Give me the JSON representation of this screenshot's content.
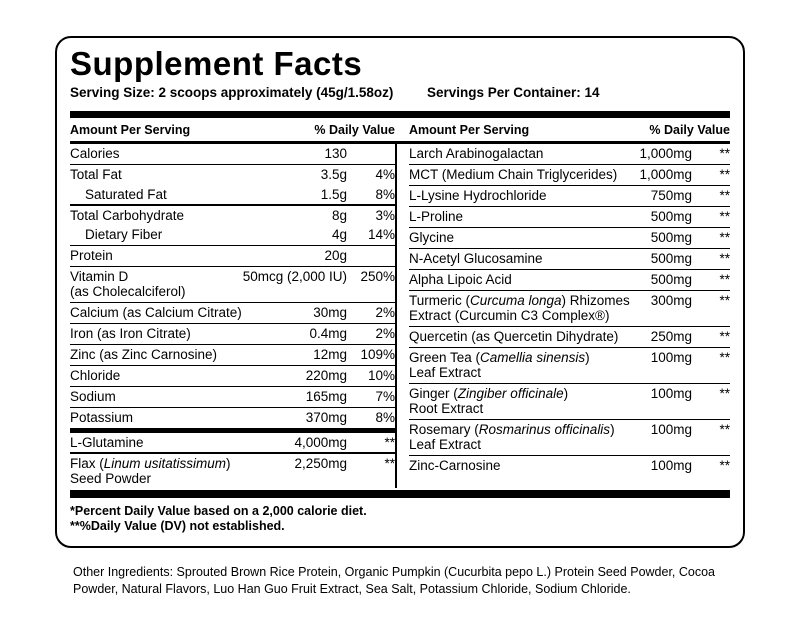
{
  "header": {
    "title": "Supplement Facts",
    "serving_size": "Serving Size: 2 scoops approximately (45g/1.58oz)",
    "servings_per_container": "Servings Per Container: 14"
  },
  "columns": {
    "amount_header": "Amount Per Serving",
    "dv_header": "% Daily Value",
    "left_rows": [
      {
        "lines": [
          "Calories"
        ],
        "amount": "130",
        "dv": "",
        "sep": "thin"
      },
      {
        "lines": [
          "Total Fat"
        ],
        "amount": "3.5g",
        "dv": "4%"
      },
      {
        "lines": [
          "Saturated Fat"
        ],
        "indent": true,
        "amount": "1.5g",
        "dv": "8%",
        "sep": "thin"
      },
      {
        "lines": [
          "Total Carbohydrate"
        ],
        "amount": "8g",
        "dv": "3%"
      },
      {
        "lines": [
          "Dietary Fiber"
        ],
        "indent": true,
        "amount": "4g",
        "dv": "14%",
        "sep": "thin"
      },
      {
        "lines": [
          "Protein"
        ],
        "amount": "20g",
        "dv": "",
        "sep": "thin"
      },
      {
        "lines": [
          "Vitamin D",
          "(as Cholecalciferol)"
        ],
        "amount": "50mcg (2,000 IU)",
        "dv": "250%",
        "sep": "thin"
      },
      {
        "lines": [
          "Calcium (as Calcium Citrate)"
        ],
        "amount": "30mg",
        "dv": "2%",
        "sep": "thin"
      },
      {
        "lines": [
          "Iron (as Iron Citrate)"
        ],
        "amount": "0.4mg",
        "dv": "2%",
        "sep": "thin"
      },
      {
        "lines": [
          "Zinc (as Zinc Carnosine)"
        ],
        "amount": "12mg",
        "dv": "109%",
        "sep": "thin"
      },
      {
        "lines": [
          "Chloride"
        ],
        "amount": "220mg",
        "dv": "10%",
        "sep": "thin"
      },
      {
        "lines": [
          "Sodium"
        ],
        "amount": "165mg",
        "dv": "7%",
        "sep": "thin"
      },
      {
        "lines": [
          "Potassium"
        ],
        "amount": "370mg",
        "dv": "8%",
        "sep": "thick"
      },
      {
        "lines": [
          "L-Glutamine"
        ],
        "amount": "4,000mg",
        "dv": "**",
        "sep": "thin"
      },
      {
        "lines": [
          [
            {
              "t": "Flax ("
            },
            {
              "t": "Linum usitatissimum",
              "i": true
            },
            {
              "t": ")"
            }
          ],
          "Seed Powder"
        ],
        "amount": "2,250mg",
        "dv": "**"
      }
    ],
    "right_rows": [
      {
        "lines": [
          "Larch Arabinogalactan"
        ],
        "amount": "1,000mg",
        "dv": "**",
        "sep": "thin"
      },
      {
        "lines": [
          "MCT (Medium Chain Triglycerides)"
        ],
        "amount": "1,000mg",
        "dv": "**",
        "sep": "thin"
      },
      {
        "lines": [
          "L-Lysine Hydrochloride"
        ],
        "amount": "750mg",
        "dv": "**",
        "sep": "thin"
      },
      {
        "lines": [
          "L-Proline"
        ],
        "amount": "500mg",
        "dv": "**",
        "sep": "thin"
      },
      {
        "lines": [
          "Glycine"
        ],
        "amount": "500mg",
        "dv": "**",
        "sep": "thin"
      },
      {
        "lines": [
          "N-Acetyl Glucosamine"
        ],
        "amount": "500mg",
        "dv": "**",
        "sep": "thin"
      },
      {
        "lines": [
          "Alpha Lipoic Acid"
        ],
        "amount": "500mg",
        "dv": "**",
        "sep": "thin"
      },
      {
        "lines": [
          [
            {
              "t": "Turmeric ("
            },
            {
              "t": "Curcuma longa",
              "i": true
            },
            {
              "t": ") Rhizomes"
            }
          ],
          "Extract (Curcumin C3 Complex®)"
        ],
        "amount": "300mg",
        "dv": "**",
        "sep": "thin"
      },
      {
        "lines": [
          "Quercetin (as Quercetin Dihydrate)"
        ],
        "amount": "250mg",
        "dv": "**",
        "sep": "thin"
      },
      {
        "lines": [
          [
            {
              "t": "Green Tea ("
            },
            {
              "t": "Camellia sinensis",
              "i": true
            },
            {
              "t": ")"
            }
          ],
          "Leaf Extract"
        ],
        "amount": "100mg",
        "dv": "**",
        "sep": "thin"
      },
      {
        "lines": [
          [
            {
              "t": "Ginger ("
            },
            {
              "t": "Zingiber officinale",
              "i": true
            },
            {
              "t": ")"
            }
          ],
          "Root Extract"
        ],
        "amount": "100mg",
        "dv": "**",
        "sep": "thin"
      },
      {
        "lines": [
          [
            {
              "t": "Rosemary ("
            },
            {
              "t": "Rosmarinus officinalis",
              "i": true
            },
            {
              "t": ")"
            }
          ],
          "Leaf Extract"
        ],
        "amount": "100mg",
        "dv": "**",
        "sep": "thin"
      },
      {
        "lines": [
          "Zinc-Carnosine"
        ],
        "amount": "100mg",
        "dv": "**"
      }
    ]
  },
  "footnotes": {
    "note1": "*Percent Daily Value based on a 2,000 calorie diet.",
    "note2": "**%Daily Value (DV) not established."
  },
  "other_ingredients": {
    "line1": "Other Ingredients: Sprouted Brown Rice Protein, Organic Pumpkin (Cucurbita pepo L.) Protein Seed Powder, Cocoa",
    "line2": "Powder, Natural Flavors, Luo Han Guo Fruit Extract, Sea Salt, Potassium Chloride, Sodium Chloride."
  }
}
